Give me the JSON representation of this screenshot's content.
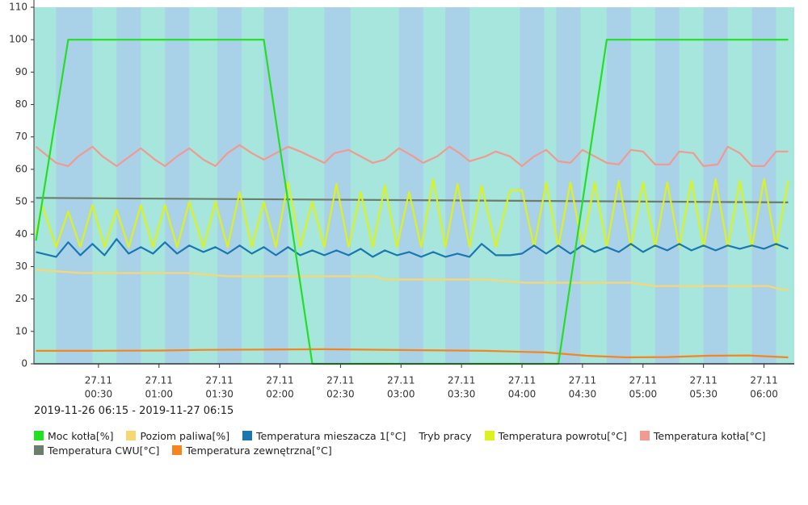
{
  "chart_data": {
    "type": "line",
    "range_label": "2019-11-26 06:15 - 2019-11-27 06:15",
    "xlim": [
      -2,
      375
    ],
    "xticks": [
      {
        "value": 30,
        "date": "27.11",
        "label": "00:30"
      },
      {
        "value": 60,
        "date": "27.11",
        "label": "01:00"
      },
      {
        "value": 90,
        "date": "27.11",
        "label": "01:30"
      },
      {
        "value": 120,
        "date": "27.11",
        "label": "02:00"
      },
      {
        "value": 150,
        "date": "27.11",
        "label": "02:30"
      },
      {
        "value": 180,
        "date": "27.11",
        "label": "03:00"
      },
      {
        "value": 210,
        "date": "27.11",
        "label": "03:30"
      },
      {
        "value": 240,
        "date": "27.11",
        "label": "04:00"
      },
      {
        "value": 270,
        "date": "27.11",
        "label": "04:30"
      },
      {
        "value": 300,
        "date": "27.11",
        "label": "05:00"
      },
      {
        "value": 330,
        "date": "27.11",
        "label": "05:30"
      },
      {
        "value": 360,
        "date": "27.11",
        "label": "06:00"
      }
    ],
    "ylim": [
      0,
      110
    ],
    "yticks": [
      0,
      10,
      20,
      30,
      40,
      50,
      60,
      70,
      80,
      90,
      100,
      110
    ],
    "series": [
      {
        "name": "Moc kotła[%]",
        "color": "#22e022",
        "x": [
          -1,
          15,
          112,
          136,
          258,
          282,
          372
        ],
        "values": [
          38,
          100,
          100,
          0,
          0,
          100,
          100
        ]
      },
      {
        "name": "Poziom paliwa[%]",
        "color": "#f7d774",
        "x": [
          -1,
          22,
          74,
          94,
          166,
          172,
          222,
          242,
          294,
          306,
          362,
          368,
          372
        ],
        "values": [
          29,
          28,
          28,
          27,
          27,
          26,
          26,
          25,
          25,
          24,
          24,
          23,
          23
        ]
      },
      {
        "name": "Temperatura mieszacza 1[°C]",
        "color": "#1a77b0",
        "x": [
          -1,
          9,
          15,
          21,
          27,
          33,
          39,
          45,
          51,
          57,
          63,
          69,
          75,
          82,
          88,
          94,
          100,
          106,
          112,
          118,
          124,
          130,
          136,
          142,
          148,
          154,
          160,
          166,
          172,
          178,
          184,
          190,
          196,
          202,
          208,
          214,
          220,
          227,
          234,
          240,
          246,
          252,
          258,
          264,
          270,
          276,
          282,
          288,
          294,
          300,
          306,
          312,
          318,
          324,
          330,
          336,
          342,
          348,
          354,
          360,
          366,
          372
        ],
        "values": [
          34.5,
          33,
          37.5,
          33.5,
          37,
          33.5,
          38.5,
          34,
          36,
          34,
          37.5,
          34,
          36.5,
          34.5,
          36,
          34,
          36.5,
          34,
          36,
          33.5,
          36,
          33.5,
          35,
          33.5,
          35,
          33.5,
          35.5,
          33,
          35,
          33.5,
          34.5,
          33,
          34.5,
          33,
          34,
          33,
          37,
          33.5,
          33.5,
          34,
          36.5,
          34,
          36.5,
          34,
          36.5,
          34.5,
          36,
          34.5,
          37,
          34.5,
          36.5,
          35,
          37,
          35,
          36.5,
          35,
          36.5,
          35.5,
          36.5,
          35.5,
          37,
          35.5
        ]
      },
      {
        "name": "Tryb pracy",
        "band_colors": [
          "#a6e6dc",
          "#a9d2e9"
        ],
        "bands": [
          [
            9,
            27
          ],
          [
            39,
            51
          ],
          [
            63,
            75
          ],
          [
            89,
            101
          ],
          [
            112,
            124
          ],
          [
            142,
            155
          ],
          [
            179,
            191
          ],
          [
            202,
            214
          ],
          [
            239,
            251
          ],
          [
            257,
            269
          ],
          [
            282,
            294
          ],
          [
            306,
            318
          ],
          [
            330,
            342
          ],
          [
            354,
            366
          ]
        ]
      },
      {
        "name": "Temperatura powrotu[°C]",
        "color": "#dcf21e",
        "x": [
          -1,
          2,
          9,
          15,
          21,
          27,
          33,
          39,
          45,
          51,
          57,
          63,
          69,
          75,
          82,
          88,
          94,
          100,
          106,
          112,
          118,
          124,
          130,
          136,
          142,
          148,
          154,
          160,
          166,
          172,
          178,
          184,
          190,
          196,
          202,
          208,
          214,
          220,
          227,
          234,
          240,
          246,
          252,
          258,
          264,
          270,
          276,
          282,
          288,
          294,
          300,
          306,
          312,
          318,
          324,
          330,
          336,
          342,
          348,
          354,
          360,
          366,
          372
        ],
        "values": [
          40,
          49,
          36,
          47,
          36,
          49,
          36,
          47.5,
          36,
          49,
          36,
          49,
          36,
          50,
          36,
          50,
          36,
          53,
          36,
          50,
          36,
          56,
          36,
          50,
          36,
          55.5,
          36,
          53,
          36,
          55,
          36,
          53,
          36,
          57,
          36,
          55.5,
          36,
          55,
          36,
          53.5,
          53.5,
          36,
          56,
          36,
          56,
          36,
          56,
          36,
          56.5,
          36,
          56,
          36,
          56,
          36,
          56.5,
          36,
          57,
          36,
          56.5,
          36,
          57,
          36,
          56.5
        ]
      },
      {
        "name": "Temperatura kotła[°C]",
        "color": "#f09a92",
        "x": [
          -1,
          9,
          15,
          20,
          27,
          32,
          39,
          51,
          58,
          63,
          69,
          75,
          82,
          88,
          94,
          100,
          106,
          112,
          124,
          130,
          142,
          147,
          154,
          166,
          172,
          179,
          186,
          191,
          198,
          204,
          209,
          214,
          222,
          227,
          234,
          240,
          246,
          252,
          258,
          264,
          270,
          282,
          288,
          294,
          300,
          306,
          313,
          318,
          325,
          330,
          337,
          342,
          348,
          354,
          360,
          366,
          372
        ],
        "values": [
          67,
          62,
          61,
          64,
          67,
          64,
          61,
          66.5,
          63,
          61,
          64,
          66.5,
          63,
          61,
          65,
          67.5,
          65,
          63,
          67,
          65.5,
          62,
          65,
          66,
          62,
          63,
          66.5,
          64,
          62,
          64,
          67,
          65,
          62.5,
          64,
          65.5,
          64,
          61,
          64,
          66,
          62.5,
          62,
          66,
          62,
          61.5,
          66,
          65.5,
          61.5,
          61.5,
          65.5,
          65,
          61,
          61.5,
          67,
          65,
          61,
          61,
          65.5,
          65.5
        ]
      },
      {
        "name": "Temperatura CWU[°C]",
        "color": "#6b7d6b",
        "x": [
          -1,
          372
        ],
        "values": [
          51.2,
          49.8
        ]
      },
      {
        "name": "Temperatura zewnętrzna[°C]",
        "color": "#f5851f",
        "x": [
          -1,
          22,
          62,
          82,
          142,
          222,
          252,
          272,
          292,
          312,
          332,
          352,
          372
        ],
        "values": [
          4,
          4,
          4.1,
          4.3,
          4.5,
          4,
          3.5,
          2.5,
          2,
          2.1,
          2.5,
          2.6,
          2
        ]
      }
    ]
  }
}
